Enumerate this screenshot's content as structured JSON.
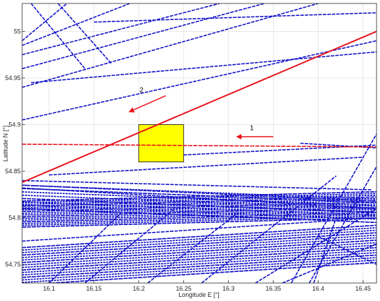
{
  "chart_data": {
    "type": "line",
    "xlabel": "Longitude E [°]",
    "ylabel": "Latitude N [°]",
    "xlim": [
      16.07,
      16.465
    ],
    "ylim": [
      54.73,
      55.03
    ],
    "grid": true,
    "xticks": [
      "16.1",
      "16.15",
      "16.2",
      "16.25",
      "16.3",
      "16.35",
      "16.4",
      "16.45"
    ],
    "yticks": [
      "54.75",
      "54.8",
      "54.85",
      "54.9",
      "54.95",
      "55"
    ],
    "colors": {
      "tracks": "#1010c8",
      "highlight": "#e8101a",
      "region": "#ffff00",
      "grid": "#e0e0e0"
    },
    "region": {
      "x": [
        16.2,
        16.25
      ],
      "y": [
        54.86,
        54.9
      ]
    },
    "highlight_tracks": [
      {
        "x": [
          16.07,
          16.465
        ],
        "y": [
          54.838,
          55.0
        ]
      },
      {
        "x": [
          16.07,
          16.465
        ],
        "y": [
          54.879,
          54.876
        ]
      }
    ],
    "track_bundles": [
      {
        "x": [
          16.07,
          16.465
        ],
        "y0": [
          54.79,
          54.8
        ],
        "y1": [
          54.818,
          54.828
        ],
        "count": 16
      },
      {
        "x": [
          16.07,
          16.465
        ],
        "y0": [
          54.728,
          54.752
        ],
        "y1": [
          54.768,
          54.792
        ],
        "count": 16
      },
      {
        "x": [
          16.07,
          16.465
        ],
        "y0": [
          54.81,
          54.795
        ],
        "y1": [
          54.835,
          54.82
        ],
        "count": 8
      }
    ],
    "tracks": [
      {
        "x": [
          16.07,
          16.465
        ],
        "y": [
          54.905,
          54.99
        ]
      },
      {
        "x": [
          16.07,
          16.34
        ],
        "y": [
          54.96,
          55.03
        ]
      },
      {
        "x": [
          16.07,
          16.29
        ],
        "y": [
          54.975,
          55.03
        ]
      },
      {
        "x": [
          16.07,
          16.4
        ],
        "y": [
          54.94,
          55.03
        ]
      },
      {
        "x": [
          16.07,
          16.19
        ],
        "y": [
          54.985,
          55.03
        ]
      },
      {
        "x": [
          16.15,
          16.465
        ],
        "y": [
          55.01,
          55.02
        ]
      },
      {
        "x": [
          16.08,
          16.465
        ],
        "y": [
          54.945,
          54.978
        ]
      },
      {
        "x": [
          16.08,
          16.14
        ],
        "y": [
          55.03,
          54.96
        ]
      },
      {
        "x": [
          16.11,
          16.17
        ],
        "y": [
          55.03,
          54.965
        ]
      },
      {
        "x": [
          16.07,
          16.12
        ],
        "y": [
          54.99,
          55.03
        ]
      },
      {
        "x": [
          16.37,
          16.465
        ],
        "y": [
          54.73,
          54.89
        ]
      },
      {
        "x": [
          16.39,
          16.465
        ],
        "y": [
          54.73,
          54.855
        ]
      },
      {
        "x": [
          16.33,
          16.465
        ],
        "y": [
          54.73,
          54.81
        ]
      },
      {
        "x": [
          16.27,
          16.42
        ],
        "y": [
          54.73,
          54.845
        ]
      },
      {
        "x": [
          16.36,
          16.465
        ],
        "y": [
          54.73,
          54.772
        ]
      },
      {
        "x": [
          16.21,
          16.31
        ],
        "y": [
          54.73,
          54.805
        ]
      },
      {
        "x": [
          16.14,
          16.24
        ],
        "y": [
          54.73,
          54.81
        ]
      },
      {
        "x": [
          16.1,
          16.18
        ],
        "y": [
          54.73,
          54.805
        ]
      },
      {
        "x": [
          16.07,
          16.46
        ],
        "y": [
          54.84,
          54.83
        ]
      },
      {
        "x": [
          16.07,
          16.465
        ],
        "y": [
          54.835,
          54.818
        ]
      },
      {
        "x": [
          16.07,
          16.465
        ],
        "y": [
          54.832,
          54.81
        ]
      },
      {
        "x": [
          16.1,
          16.45
        ],
        "y": [
          54.846,
          54.865
        ]
      },
      {
        "x": [
          16.2,
          16.465
        ],
        "y": [
          54.865,
          54.878
        ]
      },
      {
        "x": [
          16.38,
          16.465
        ],
        "y": [
          54.88,
          54.875
        ]
      },
      {
        "x": [
          16.395,
          16.42
        ],
        "y": [
          54.73,
          54.8
        ]
      },
      {
        "x": [
          16.4,
          16.465
        ],
        "y": [
          54.78,
          54.75
        ]
      },
      {
        "x": [
          16.07,
          16.465
        ],
        "y": [
          54.775,
          54.8
        ]
      }
    ],
    "annotations": [
      {
        "text": "1",
        "arrow": {
          "x": [
            16.35,
            16.31
          ],
          "y": [
            54.887,
            54.887
          ]
        },
        "label": [
          16.326,
          54.894
        ]
      },
      {
        "text": "2",
        "arrow": {
          "x": [
            16.23,
            16.19
          ],
          "y": [
            54.931,
            54.914
          ]
        },
        "label": [
          16.203,
          54.935
        ]
      }
    ]
  }
}
